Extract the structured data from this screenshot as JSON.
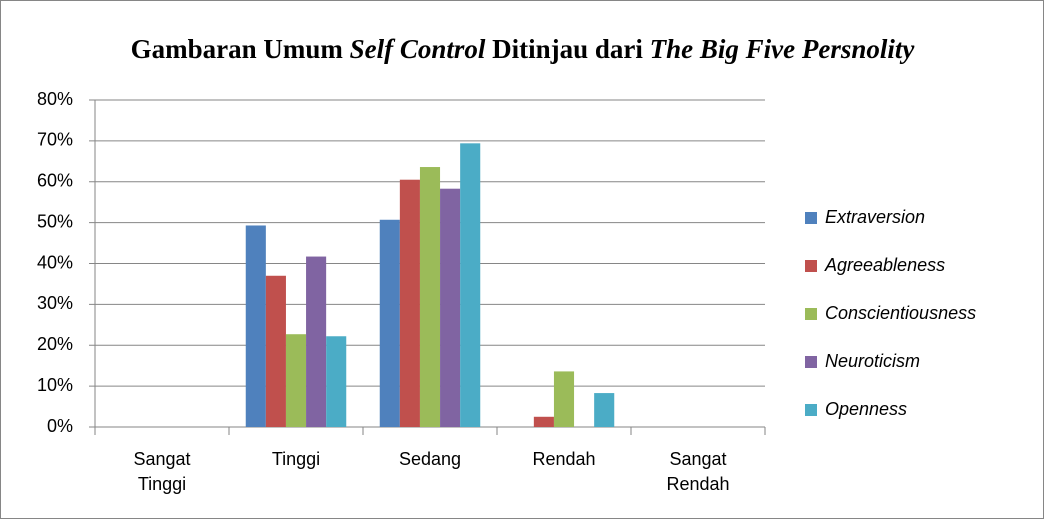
{
  "chart_data": {
    "type": "bar",
    "title": [
      {
        "text": "Gambaran Umum",
        "italic": false
      },
      {
        "text": "Self Control",
        "italic": true
      },
      {
        "text": "Ditinjau dari",
        "italic": false
      },
      {
        "text": "The Big Five",
        "italic": true
      },
      {
        "text": "Persnolity",
        "italic": true
      }
    ],
    "categories": [
      "Sangat Tinggi",
      "Tinggi",
      "Sedang",
      "Rendah",
      "Sangat Rendah"
    ],
    "series": [
      {
        "name": "Extraversion",
        "color": "#4f81bd",
        "values": [
          0,
          49.3,
          50.7,
          0,
          0
        ]
      },
      {
        "name": "Agreeableness",
        "color": "#c0504d",
        "values": [
          0,
          37,
          60.5,
          2.5,
          0
        ]
      },
      {
        "name": "Conscientiousness",
        "color": "#9bbb59",
        "values": [
          0,
          22.7,
          63.6,
          13.6,
          0
        ]
      },
      {
        "name": "Neuroticism",
        "color": "#8064a2",
        "values": [
          0,
          41.7,
          58.3,
          0,
          0
        ]
      },
      {
        "name": "Openness",
        "color": "#4bacc6",
        "values": [
          0,
          22.2,
          69.4,
          8.3,
          0
        ]
      }
    ],
    "ylim": [
      0,
      80
    ],
    "yticks": [
      {
        "value": 0,
        "label": "0%"
      },
      {
        "value": 10,
        "label": "10%"
      },
      {
        "value": 20,
        "label": "20%"
      },
      {
        "value": 30,
        "label": "30%"
      },
      {
        "value": 40,
        "label": "40%"
      },
      {
        "value": 50,
        "label": "50%"
      },
      {
        "value": 60,
        "label": "60%"
      },
      {
        "value": 70,
        "label": "70%"
      },
      {
        "value": 80,
        "label": "80%"
      }
    ],
    "grid": true,
    "legend": "right"
  }
}
